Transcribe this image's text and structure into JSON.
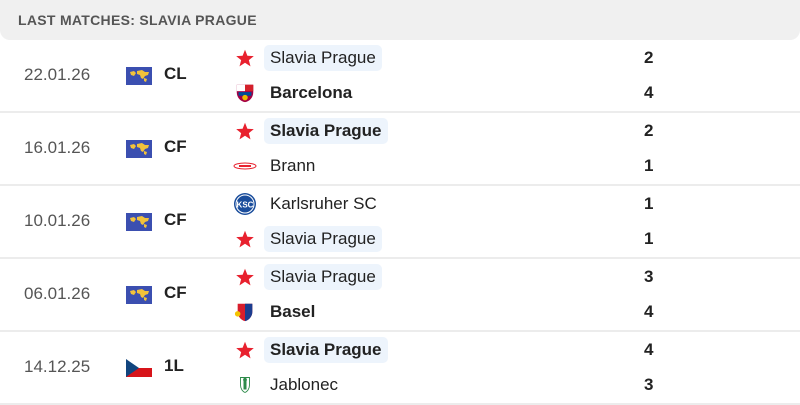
{
  "header": {
    "title": "LAST MATCHES: SLAVIA PRAGUE"
  },
  "matches": [
    {
      "date": "22.01.26",
      "competition": "CL",
      "flag": "world-flag",
      "home": {
        "name": "Slavia Prague",
        "crest": "slavia-star",
        "winner": false,
        "highlight": true,
        "score": "2"
      },
      "away": {
        "name": "Barcelona",
        "crest": "barcelona-crest",
        "winner": true,
        "highlight": false,
        "score": "4"
      }
    },
    {
      "date": "16.01.26",
      "competition": "CF",
      "flag": "world-flag",
      "home": {
        "name": "Slavia Prague",
        "crest": "slavia-star",
        "winner": true,
        "highlight": true,
        "score": "2"
      },
      "away": {
        "name": "Brann",
        "crest": "brann-crest",
        "winner": false,
        "highlight": false,
        "score": "1"
      }
    },
    {
      "date": "10.01.26",
      "competition": "CF",
      "flag": "world-flag",
      "home": {
        "name": "Karlsruher SC",
        "crest": "ksc-crest",
        "winner": false,
        "highlight": false,
        "score": "1"
      },
      "away": {
        "name": "Slavia Prague",
        "crest": "slavia-star",
        "winner": false,
        "highlight": true,
        "score": "1"
      }
    },
    {
      "date": "06.01.26",
      "competition": "CF",
      "flag": "world-flag",
      "home": {
        "name": "Slavia Prague",
        "crest": "slavia-star",
        "winner": false,
        "highlight": true,
        "score": "3"
      },
      "away": {
        "name": "Basel",
        "crest": "basel-crest",
        "winner": true,
        "highlight": false,
        "score": "4"
      }
    },
    {
      "date": "14.12.25",
      "competition": "1L",
      "flag": "czech-flag",
      "home": {
        "name": "Slavia Prague",
        "crest": "slavia-star",
        "winner": true,
        "highlight": true,
        "score": "4"
      },
      "away": {
        "name": "Jablonec",
        "crest": "jablonec-crest",
        "winner": false,
        "highlight": false,
        "score": "3"
      }
    }
  ]
}
